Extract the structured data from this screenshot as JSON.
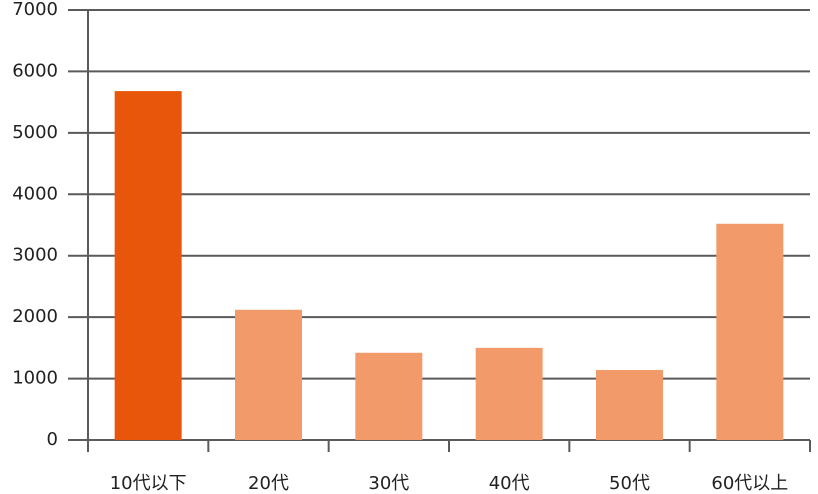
{
  "chart_data": {
    "type": "bar",
    "categories": [
      "10代以下",
      "20代",
      "30代",
      "40代",
      "50代",
      "60代以上"
    ],
    "values": [
      5680,
      2120,
      1420,
      1500,
      1140,
      3520
    ],
    "colors": [
      "#e8560c",
      "#f29a6a",
      "#f29a6a",
      "#f29a6a",
      "#f29a6a",
      "#f29a6a"
    ],
    "ylim": [
      0,
      7000
    ],
    "yticks": [
      0,
      1000,
      2000,
      3000,
      4000,
      5000,
      6000,
      7000
    ],
    "grid": true
  }
}
